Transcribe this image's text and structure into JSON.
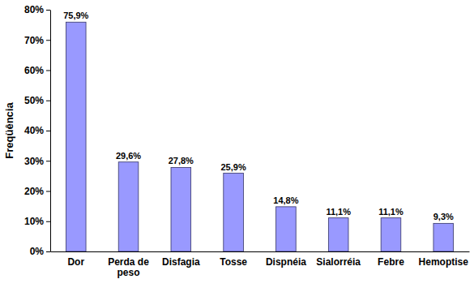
{
  "chart_data": {
    "type": "bar",
    "y_label": "Freqüência",
    "categories": [
      "Dor",
      "Perda de peso",
      "Disfagia",
      "Tosse",
      "Dispnéia",
      "Sialorréia",
      "Febre",
      "Hemoptise"
    ],
    "values": [
      75.9,
      29.6,
      27.8,
      25.9,
      14.8,
      11.1,
      11.1,
      9.3
    ],
    "value_labels": [
      "75,9%",
      "29,6%",
      "27,8%",
      "25,9%",
      "14,8%",
      "11,1%",
      "11,1%",
      "9,3%"
    ],
    "color": "#9999ff",
    "ylim": [
      0,
      80
    ],
    "yticks": [
      {
        "value": 0,
        "label": "0%"
      },
      {
        "value": 10,
        "label": "10%"
      },
      {
        "value": 20,
        "label": "20%"
      },
      {
        "value": 30,
        "label": "30%"
      },
      {
        "value": 40,
        "label": "40%"
      },
      {
        "value": 50,
        "label": "50%"
      },
      {
        "value": 60,
        "label": "60%"
      },
      {
        "value": 70,
        "label": "70%"
      },
      {
        "value": 80,
        "label": "80%"
      }
    ],
    "grid": false,
    "data_labels": true
  }
}
